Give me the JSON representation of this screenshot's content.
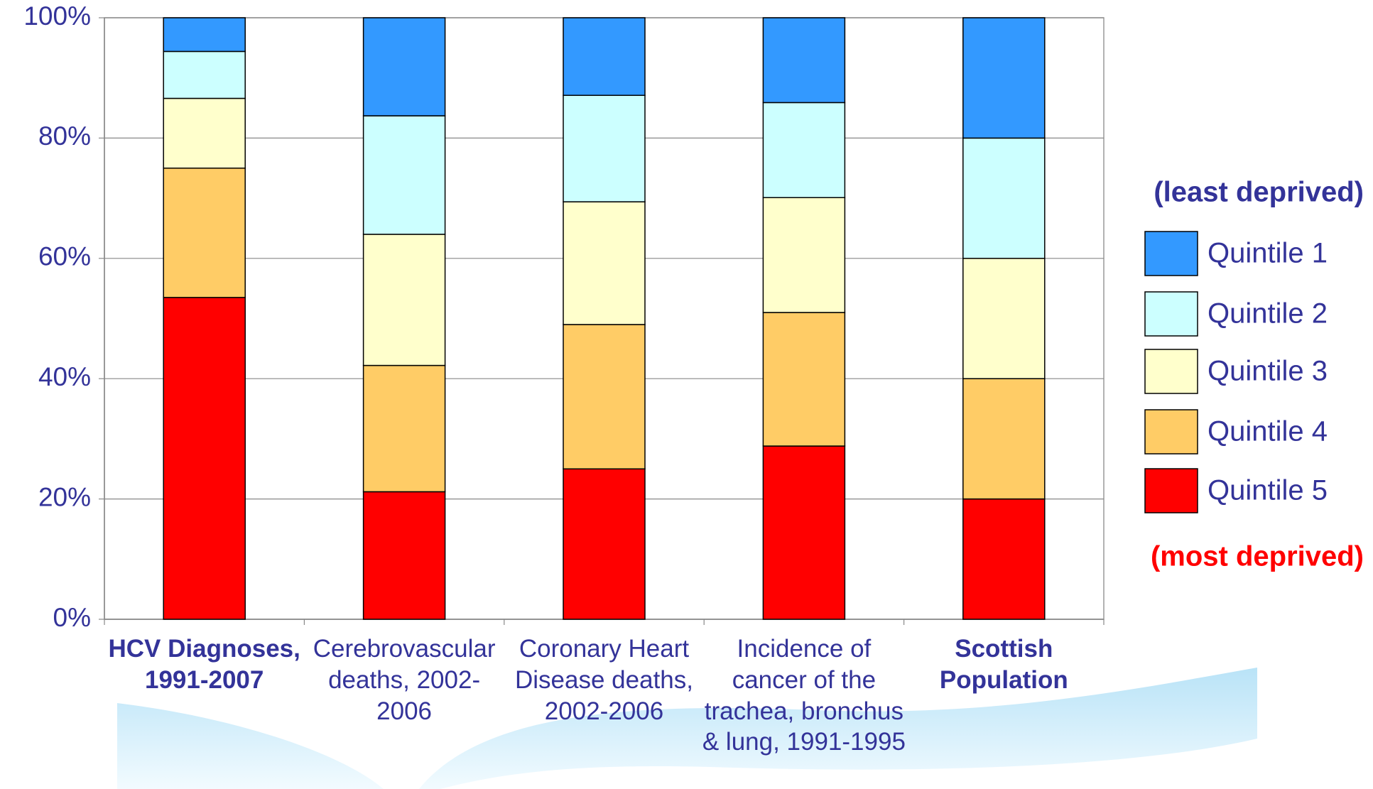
{
  "chart_data": {
    "type": "stacked-bar",
    "categories": [
      "HCV Diagnoses, 1991-2007",
      "Cerebrovascular deaths, 2002-2006",
      "Coronary Heart Disease deaths, 2002-2006",
      "Incidence of cancer of the trachea, bronchus & lung, 1991-1995",
      "Scottish Population"
    ],
    "series": [
      {
        "name": "Quintile 1",
        "color": "#3399ff",
        "values": [
          5.6,
          16.3,
          12.9,
          14.1,
          20
        ]
      },
      {
        "name": "Quintile 2",
        "color": "#ccffff",
        "values": [
          7.8,
          19.7,
          17.7,
          15.8,
          20
        ]
      },
      {
        "name": "Quintile 3",
        "color": "#ffffcc",
        "values": [
          11.6,
          21.8,
          20.4,
          19.1,
          20
        ]
      },
      {
        "name": "Quintile 4",
        "color": "#ffcc66",
        "values": [
          21.5,
          21.0,
          24.0,
          22.2,
          20
        ]
      },
      {
        "name": "Quintile 5",
        "color": "#ff0000",
        "values": [
          53.5,
          21.2,
          25.0,
          28.8,
          20
        ]
      }
    ],
    "legend_title_top": "(least deprived)",
    "legend_title_bottom": "(most deprived)",
    "ylim": [
      0,
      100
    ],
    "yticks": [
      {
        "value": 0,
        "label": "0%"
      },
      {
        "value": 20,
        "label": "20%"
      },
      {
        "value": 40,
        "label": "40%"
      },
      {
        "value": 60,
        "label": "60%"
      },
      {
        "value": 80,
        "label": "80%"
      },
      {
        "value": 100,
        "label": "100%"
      }
    ],
    "grid": true
  }
}
